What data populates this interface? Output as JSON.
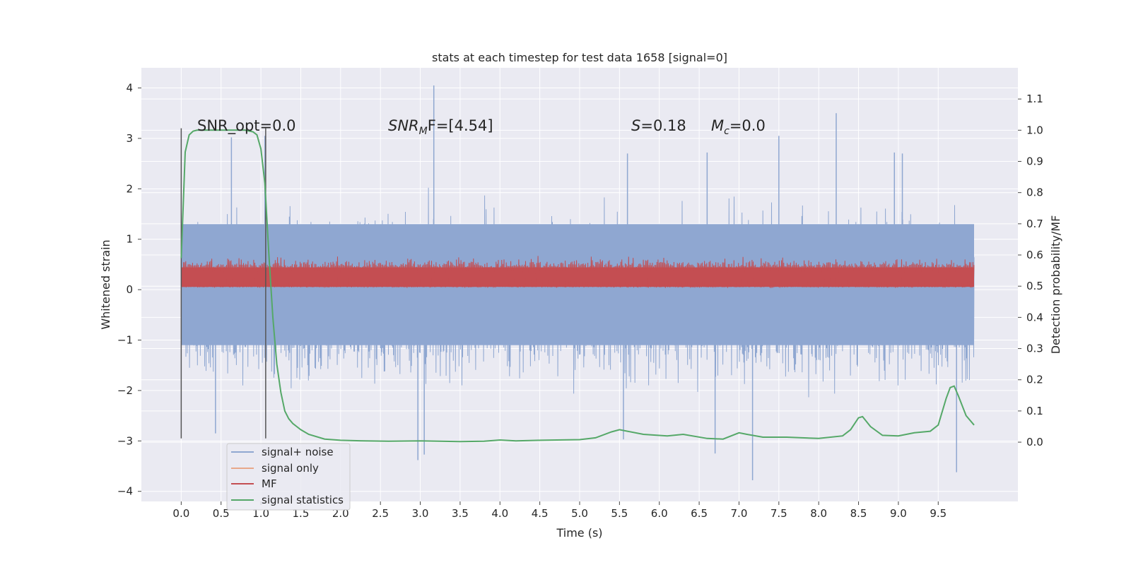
{
  "chart_data": {
    "type": "line",
    "title": "stats at each timestep for test data 1658 [signal=0]",
    "xlabel": "Time (s)",
    "ylabel_left": "Whitened strain",
    "ylabel_right": "Detection probability/MF",
    "xlim": [
      -0.5,
      10.5
    ],
    "ylim_left": [
      -4.2,
      4.4
    ],
    "ylim_right": [
      -0.19,
      1.2
    ],
    "x_ticks": [
      "0.0",
      "0.5",
      "1.0",
      "1.5",
      "2.0",
      "2.5",
      "3.0",
      "3.5",
      "4.0",
      "4.5",
      "5.0",
      "5.5",
      "6.0",
      "6.5",
      "7.0",
      "7.5",
      "8.0",
      "8.5",
      "9.0",
      "9.5"
    ],
    "y_left_ticks": [
      "−4",
      "−3",
      "−2",
      "−1",
      "0",
      "1",
      "2",
      "3",
      "4"
    ],
    "y_right_ticks": [
      "0.0",
      "0.1",
      "0.2",
      "0.3",
      "0.4",
      "0.5",
      "0.6",
      "0.7",
      "0.8",
      "0.9",
      "1.0",
      "1.1"
    ],
    "grid": true,
    "legend_position": "lower-left",
    "colors": {
      "signal_noise": "#8fa7d1",
      "signal_only": "#e8a88a",
      "mf": "#c44e52",
      "signal_statistics": "#55a868",
      "window_marker": "#555555",
      "axes_bg": "#eaeaf2",
      "grid": "#ffffff"
    },
    "annotations": {
      "snr_opt": "SNR_opt=0.0",
      "snr_mf_main": "SNR",
      "snr_mf_sub": "M",
      "snr_mf_rest": "F=[4.54]",
      "s_main": "S",
      "s_rest": "=0.18",
      "mc_main": "M",
      "mc_sub": "c",
      "mc_rest": "=0.0"
    },
    "window_markers_x": [
      0.0,
      1.06
    ],
    "window_markers_y": [
      -2.95,
      3.2
    ],
    "series": [
      {
        "name": "signal+ noise",
        "axis": "left",
        "x_range": [
          0.0,
          9.95
        ],
        "band": {
          "dense_low": -1.1,
          "dense_high": 1.3
        },
        "spikes": [
          {
            "x": 3.17,
            "y": 4.05
          },
          {
            "x": 8.22,
            "y": 3.5
          },
          {
            "x": 2.97,
            "y": -3.38
          },
          {
            "x": 7.17,
            "y": -3.78
          },
          {
            "x": 9.73,
            "y": -3.62
          },
          {
            "x": 3.05,
            "y": -3.27
          },
          {
            "x": 7.5,
            "y": 3.05
          },
          {
            "x": 0.63,
            "y": 3.02
          },
          {
            "x": 5.55,
            "y": -2.97
          },
          {
            "x": 6.7,
            "y": -3.25
          },
          {
            "x": 6.6,
            "y": 2.72
          },
          {
            "x": 8.95,
            "y": 2.72
          },
          {
            "x": 5.6,
            "y": 2.7
          },
          {
            "x": 9.05,
            "y": 2.7
          },
          {
            "x": 1.05,
            "y": 3.05
          },
          {
            "x": 0.43,
            "y": -2.85
          }
        ],
        "values": []
      },
      {
        "name": "signal only",
        "axis": "left",
        "values": []
      },
      {
        "name": "MF",
        "axis": "right",
        "x_range": [
          0.0,
          9.95
        ],
        "band": {
          "low": 0.495,
          "high": 0.58
        },
        "values": []
      },
      {
        "name": "signal statistics",
        "axis": "right",
        "x": [
          0.0,
          0.05,
          0.1,
          0.15,
          0.2,
          0.3,
          0.5,
          0.7,
          0.8,
          0.9,
          0.95,
          1.0,
          1.05,
          1.1,
          1.15,
          1.2,
          1.25,
          1.3,
          1.35,
          1.4,
          1.45,
          1.5,
          1.6,
          1.8,
          2.0,
          2.3,
          2.6,
          3.0,
          3.5,
          3.8,
          4.0,
          4.2,
          4.5,
          5.0,
          5.2,
          5.4,
          5.5,
          5.6,
          5.8,
          6.1,
          6.3,
          6.6,
          6.8,
          7.0,
          7.1,
          7.3,
          7.6,
          8.0,
          8.3,
          8.4,
          8.5,
          8.55,
          8.65,
          8.8,
          9.0,
          9.2,
          9.4,
          9.5,
          9.6,
          9.65,
          9.7,
          9.75,
          9.85,
          9.95
        ],
        "values": [
          0.59,
          0.93,
          0.985,
          0.997,
          1.0,
          1.0,
          1.0,
          1.0,
          1.0,
          0.995,
          0.985,
          0.94,
          0.83,
          0.6,
          0.4,
          0.25,
          0.16,
          0.1,
          0.075,
          0.06,
          0.05,
          0.04,
          0.025,
          0.01,
          0.006,
          0.004,
          0.003,
          0.004,
          0.002,
          0.003,
          0.007,
          0.004,
          0.006,
          0.008,
          0.014,
          0.033,
          0.04,
          0.035,
          0.025,
          0.02,
          0.025,
          0.012,
          0.01,
          0.03,
          0.025,
          0.016,
          0.016,
          0.012,
          0.02,
          0.04,
          0.078,
          0.082,
          0.05,
          0.022,
          0.02,
          0.03,
          0.035,
          0.055,
          0.14,
          0.175,
          0.18,
          0.15,
          0.085,
          0.055
        ]
      }
    ]
  }
}
